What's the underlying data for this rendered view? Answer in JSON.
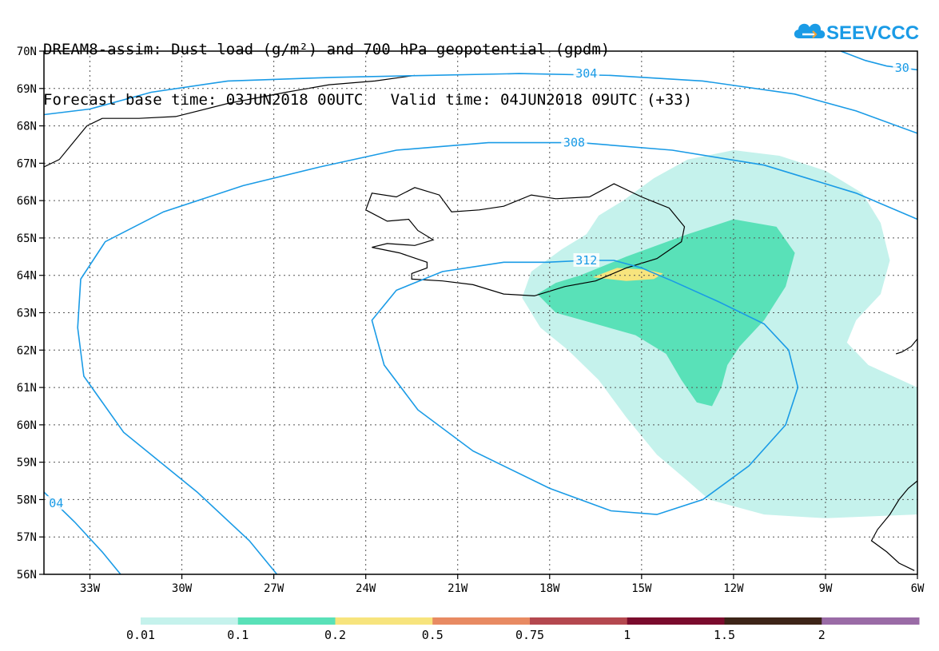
{
  "title": {
    "line1": "DREAM8-assim: Dust load (g/m²) and 700 hPa geopotential (gpdm)",
    "line2": "Forecast base time: 03JUN2018 00UTC   Valid time: 04JUN2018 09UTC (+33)"
  },
  "logo": {
    "text": "SEEVCCC",
    "icon": "cloud-icon",
    "color": "#1a9be6"
  },
  "map": {
    "lon_range": [
      -34.5,
      -6
    ],
    "lat_range": [
      56,
      70
    ],
    "lon_ticks": [
      {
        "value": -33,
        "label": "33W"
      },
      {
        "value": -30,
        "label": "30W"
      },
      {
        "value": -27,
        "label": "27W"
      },
      {
        "value": -24,
        "label": "24W"
      },
      {
        "value": -21,
        "label": "21W"
      },
      {
        "value": -18,
        "label": "18W"
      },
      {
        "value": -15,
        "label": "15W"
      },
      {
        "value": -12,
        "label": "12W"
      },
      {
        "value": -9,
        "label": "9W"
      },
      {
        "value": -6,
        "label": "6W"
      }
    ],
    "lat_ticks": [
      {
        "value": 56,
        "label": "56N"
      },
      {
        "value": 57,
        "label": "57N"
      },
      {
        "value": 58,
        "label": "58N"
      },
      {
        "value": 59,
        "label": "59N"
      },
      {
        "value": 60,
        "label": "60N"
      },
      {
        "value": 61,
        "label": "61N"
      },
      {
        "value": 62,
        "label": "62N"
      },
      {
        "value": 63,
        "label": "63N"
      },
      {
        "value": 64,
        "label": "64N"
      },
      {
        "value": 65,
        "label": "65N"
      },
      {
        "value": 66,
        "label": "66N"
      },
      {
        "value": 67,
        "label": "67N"
      },
      {
        "value": 68,
        "label": "68N"
      },
      {
        "value": 69,
        "label": "69N"
      },
      {
        "value": 70,
        "label": "70N"
      }
    ],
    "grid": true,
    "contour_color": "#1a9be6",
    "contours": [
      {
        "name": "contour-304-left",
        "label": "04",
        "points": [
          [
            -34.5,
            58.2
          ],
          [
            -33.5,
            57.4
          ],
          [
            -32.6,
            56.6
          ],
          [
            -32,
            56
          ]
        ]
      },
      {
        "name": "contour-304-left-east",
        "label": "",
        "points": [
          [
            -26.9,
            56
          ],
          [
            -27.8,
            56.9
          ],
          [
            -29.5,
            58.2
          ],
          [
            -31.9,
            59.8
          ],
          [
            -33.2,
            61.3
          ],
          [
            -33.4,
            62.6
          ],
          [
            -33.3,
            63.9
          ],
          [
            -32.5,
            64.9
          ],
          [
            -30.6,
            65.7
          ],
          [
            -28,
            66.4
          ],
          [
            -25.5,
            66.9
          ]
        ]
      },
      {
        "name": "contour-304-north",
        "label": "304",
        "points": [
          [
            -34.5,
            68.3
          ],
          [
            -33,
            68.45
          ],
          [
            -31,
            68.9
          ],
          [
            -28.5,
            69.2
          ],
          [
            -25,
            69.3
          ],
          [
            -22,
            69.35
          ],
          [
            -19,
            69.4
          ],
          [
            -16,
            69.35
          ],
          [
            -13,
            69.2
          ],
          [
            -10,
            68.85
          ],
          [
            -8,
            68.4
          ],
          [
            -6,
            67.8
          ]
        ]
      },
      {
        "name": "contour-304-ne",
        "label": "30",
        "points": [
          [
            -8.5,
            70
          ],
          [
            -7.7,
            69.75
          ],
          [
            -7,
            69.6
          ],
          [
            -6,
            69.5
          ]
        ]
      },
      {
        "name": "contour-308",
        "label": "308",
        "points": [
          [
            -25.5,
            66.9
          ],
          [
            -23,
            67.35
          ],
          [
            -20,
            67.55
          ],
          [
            -17,
            67.55
          ],
          [
            -14,
            67.35
          ],
          [
            -11,
            66.95
          ],
          [
            -8,
            66.2
          ],
          [
            -6,
            65.5
          ]
        ]
      },
      {
        "name": "contour-312",
        "label": "312",
        "points": [
          [
            -16.8,
            64.4
          ],
          [
            -15.9,
            64.4
          ],
          [
            -15,
            64.2
          ],
          [
            -14,
            63.85
          ],
          [
            -12.5,
            63.3
          ],
          [
            -11,
            62.7
          ],
          [
            -10.2,
            62
          ],
          [
            -9.9,
            61
          ],
          [
            -10.3,
            60
          ],
          [
            -11.5,
            58.9
          ],
          [
            -13,
            58
          ],
          [
            -14.5,
            57.6
          ],
          [
            -16,
            57.7
          ],
          [
            -18,
            58.3
          ],
          [
            -20.5,
            59.3
          ],
          [
            -22.3,
            60.4
          ],
          [
            -23.4,
            61.6
          ],
          [
            -23.8,
            62.8
          ],
          [
            -23,
            63.6
          ],
          [
            -21.5,
            64.1
          ],
          [
            -19.5,
            64.35
          ],
          [
            -18.1,
            64.35
          ],
          [
            -16.8,
            64.4
          ]
        ]
      }
    ],
    "dust_fill_colors": [
      "#c5f2ec",
      "#59e1b8",
      "#f7e47d"
    ],
    "dust_regions": [
      {
        "name": "dust-region-001",
        "level": 0,
        "points": [
          [
            -16.4,
            65.6
          ],
          [
            -15.6,
            66
          ],
          [
            -14.6,
            66.6
          ],
          [
            -13.5,
            67.1
          ],
          [
            -12,
            67.35
          ],
          [
            -10.5,
            67.2
          ],
          [
            -9,
            66.8
          ],
          [
            -7.8,
            66.2
          ],
          [
            -7.2,
            65.4
          ],
          [
            -6.9,
            64.4
          ],
          [
            -7.2,
            63.5
          ],
          [
            -8,
            62.8
          ],
          [
            -8.3,
            62.2
          ],
          [
            -7.6,
            61.6
          ],
          [
            -6,
            61
          ],
          [
            -6,
            57.6
          ],
          [
            -9,
            57.5
          ],
          [
            -11,
            57.6
          ],
          [
            -12.8,
            58
          ],
          [
            -13.5,
            58.5
          ],
          [
            -14.5,
            59.2
          ],
          [
            -15.5,
            60.2
          ],
          [
            -16.4,
            61.2
          ],
          [
            -17.4,
            62
          ],
          [
            -18.3,
            62.6
          ],
          [
            -18.9,
            63.4
          ],
          [
            -18.6,
            64.1
          ],
          [
            -17.6,
            64.7
          ],
          [
            -16.8,
            65.1
          ],
          [
            -16.4,
            65.6
          ]
        ]
      },
      {
        "name": "dust-region-01",
        "level": 1,
        "points": [
          [
            -17,
            64
          ],
          [
            -15.5,
            64.5
          ],
          [
            -13.5,
            65.1
          ],
          [
            -12,
            65.5
          ],
          [
            -10.6,
            65.3
          ],
          [
            -10,
            64.6
          ],
          [
            -10.3,
            63.7
          ],
          [
            -11,
            62.8
          ],
          [
            -11.8,
            62.1
          ],
          [
            -12.2,
            61.6
          ],
          [
            -12.4,
            61
          ],
          [
            -12.7,
            60.5
          ],
          [
            -13.2,
            60.6
          ],
          [
            -13.7,
            61.2
          ],
          [
            -14.2,
            61.9
          ],
          [
            -15.2,
            62.4
          ],
          [
            -16.5,
            62.7
          ],
          [
            -17.8,
            63
          ],
          [
            -18.4,
            63.5
          ],
          [
            -17.8,
            63.8
          ],
          [
            -17,
            64
          ]
        ]
      },
      {
        "name": "dust-region-02",
        "level": 2,
        "points": [
          [
            -16.6,
            63.95
          ],
          [
            -15.8,
            64.2
          ],
          [
            -14.8,
            64.15
          ],
          [
            -14.3,
            64.05
          ],
          [
            -14.6,
            63.9
          ],
          [
            -15.5,
            63.85
          ],
          [
            -16.6,
            63.95
          ]
        ]
      }
    ],
    "coastlines": [
      {
        "name": "iceland-coastline",
        "points": [
          [
            -22.5,
            63.9
          ],
          [
            -21.5,
            63.85
          ],
          [
            -20.5,
            63.75
          ],
          [
            -19.5,
            63.5
          ],
          [
            -18.5,
            63.45
          ],
          [
            -17.5,
            63.7
          ],
          [
            -16.5,
            63.85
          ],
          [
            -15.5,
            64.2
          ],
          [
            -14.5,
            64.45
          ],
          [
            -13.7,
            64.9
          ],
          [
            -13.6,
            65.3
          ],
          [
            -14.1,
            65.8
          ],
          [
            -15,
            66.1
          ],
          [
            -15.9,
            66.45
          ],
          [
            -16.7,
            66.1
          ],
          [
            -17.8,
            66.05
          ],
          [
            -18.6,
            66.15
          ],
          [
            -19.5,
            65.85
          ],
          [
            -20.3,
            65.75
          ],
          [
            -21.2,
            65.7
          ],
          [
            -21.6,
            66.15
          ],
          [
            -22.4,
            66.35
          ],
          [
            -23,
            66.1
          ],
          [
            -23.8,
            66.2
          ],
          [
            -24,
            65.75
          ],
          [
            -23.3,
            65.45
          ],
          [
            -22.6,
            65.5
          ],
          [
            -22.3,
            65.2
          ],
          [
            -21.8,
            64.95
          ],
          [
            -22.4,
            64.8
          ],
          [
            -23.3,
            64.85
          ],
          [
            -23.8,
            64.75
          ],
          [
            -22.9,
            64.6
          ],
          [
            -22,
            64.35
          ],
          [
            -22,
            64.2
          ],
          [
            -22.5,
            64.05
          ],
          [
            -22.5,
            63.9
          ]
        ]
      },
      {
        "name": "greenland-coastline",
        "points": [
          [
            -34.5,
            66.9
          ],
          [
            -34,
            67.1
          ],
          [
            -33.5,
            67.6
          ],
          [
            -33.1,
            68
          ],
          [
            -32.6,
            68.2
          ],
          [
            -31.4,
            68.2
          ],
          [
            -30.2,
            68.25
          ],
          [
            -28.5,
            68.6
          ],
          [
            -26.6,
            68.9
          ],
          [
            -25.2,
            69.1
          ],
          [
            -23.7,
            69.2
          ],
          [
            -22.4,
            69.35
          ]
        ]
      },
      {
        "name": "faroe-shetland-coastline",
        "points": [
          [
            -6,
            62.3
          ],
          [
            -6.2,
            62.1
          ],
          [
            -6.5,
            61.95
          ],
          [
            -6.7,
            61.9
          ]
        ]
      },
      {
        "name": "scotland-coastline",
        "points": [
          [
            -6,
            58.5
          ],
          [
            -6.3,
            58.3
          ],
          [
            -6.6,
            58.0
          ],
          [
            -6.9,
            57.6
          ],
          [
            -7.3,
            57.2
          ],
          [
            -7.5,
            56.9
          ],
          [
            -7,
            56.6
          ],
          [
            -6.6,
            56.3
          ],
          [
            -6.1,
            56.1
          ]
        ]
      }
    ]
  },
  "colorbar": {
    "labels": [
      "0.01",
      "0.1",
      "0.2",
      "0.5",
      "0.75",
      "1",
      "1.5",
      "2"
    ],
    "colors": [
      "#c5f2ec",
      "#59e1b8",
      "#f7e47d",
      "#e88a62",
      "#b4484f",
      "#7a0b2d",
      "#3d2418",
      "#9a6ba6"
    ]
  }
}
